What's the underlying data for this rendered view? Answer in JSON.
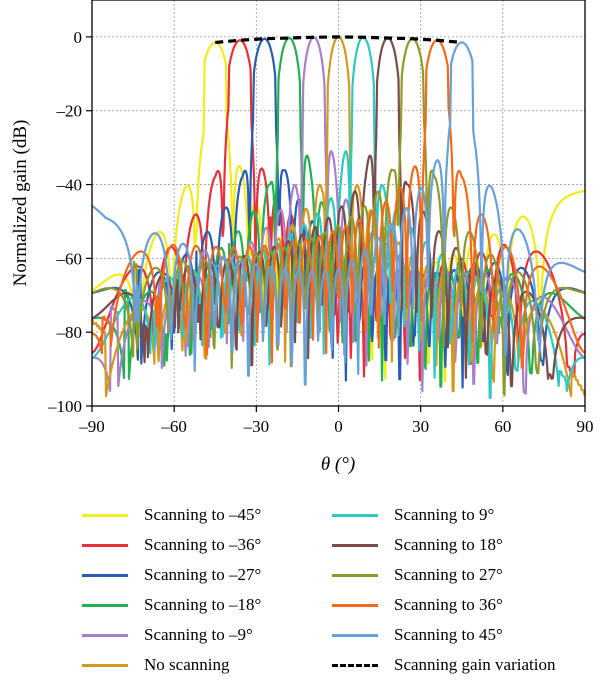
{
  "chart_data": {
    "type": "line",
    "xlabel": "θ (°)",
    "ylabel": "Normalized gain (dB)",
    "xlim": [
      -90,
      90
    ],
    "ylim": [
      -100,
      10
    ],
    "xticks": [
      -90,
      -60,
      -30,
      0,
      30,
      60,
      90
    ],
    "yticks": [
      0,
      -20,
      -40,
      -60,
      -80,
      -100
    ],
    "xtick_labels": [
      "–90",
      "–60",
      "–30",
      "0",
      "30",
      "60",
      "90"
    ],
    "ytick_labels": [
      "0",
      "–20",
      "–40",
      "–60",
      "–80",
      "–100"
    ],
    "grid": true,
    "legend_position": "bottom",
    "series": [
      {
        "name": "Scanning to –45°",
        "steer": -45,
        "peak": -1.5,
        "color": "#f2ec1a",
        "x": [
          -90,
          -75,
          -60,
          -50,
          -47,
          -45,
          -43,
          -40,
          -30,
          0,
          30,
          60,
          75,
          90
        ],
        "y": [
          -60,
          -52,
          -45,
          -35,
          -18,
          -1.5,
          -18,
          -32,
          -40,
          -45,
          -46,
          -40,
          -35,
          -33
        ]
      },
      {
        "name": "Scanning to –36°",
        "steer": -36,
        "peak": -0.9,
        "color": "#e8303a",
        "x": [
          -90,
          -60,
          -45,
          -38,
          -36,
          -34,
          -30,
          0,
          30,
          60,
          90
        ],
        "y": [
          -55,
          -48,
          -38,
          -18,
          -0.9,
          -18,
          -35,
          -46,
          -46,
          -42,
          -50
        ]
      },
      {
        "name": "Scanning to –27°",
        "steer": -27,
        "peak": -0.5,
        "color": "#2a5cb0",
        "x": [
          -90,
          -60,
          -35,
          -29,
          -27,
          -25,
          -20,
          0,
          30,
          60,
          90
        ],
        "y": [
          -55,
          -50,
          -38,
          -18,
          -0.5,
          -18,
          -36,
          -46,
          -47,
          -45,
          -55
        ]
      },
      {
        "name": "Scanning to –18°",
        "steer": -18,
        "peak": -0.3,
        "color": "#22b050",
        "x": [
          -90,
          -60,
          -25,
          -20,
          -18,
          -16,
          -10,
          0,
          30,
          60,
          90
        ],
        "y": [
          -58,
          -52,
          -40,
          -18,
          -0.3,
          -18,
          -36,
          -45,
          -47,
          -46,
          -58
        ]
      },
      {
        "name": "Scanning to –9°",
        "steer": -9,
        "peak": -0.1,
        "color": "#a97fca",
        "x": [
          -90,
          -60,
          -15,
          -11,
          -9,
          -7,
          0,
          30,
          60,
          90
        ],
        "y": [
          -60,
          -52,
          -40,
          -18,
          -0.1,
          -18,
          -38,
          -47,
          -47,
          -60
        ]
      },
      {
        "name": "No scanning",
        "steer": 0,
        "peak": 0,
        "color": "#d49a1e",
        "x": [
          -90,
          -60,
          -6,
          -2,
          0,
          2,
          6,
          30,
          60,
          90
        ],
        "y": [
          -62,
          -52,
          -40,
          -18,
          0,
          -18,
          -40,
          -47,
          -52,
          -62
        ]
      },
      {
        "name": "Scanning to 9°",
        "steer": 9,
        "peak": -0.1,
        "color": "#2ec9c4",
        "x": [
          -90,
          -60,
          0,
          7,
          9,
          11,
          15,
          60,
          90
        ],
        "y": [
          -60,
          -47,
          -38,
          -18,
          -0.1,
          -18,
          -40,
          -52,
          -60
        ]
      },
      {
        "name": "Scanning to 18°",
        "steer": 18,
        "peak": -0.3,
        "color": "#7b4a4a",
        "x": [
          -90,
          -60,
          10,
          16,
          18,
          20,
          25,
          60,
          90
        ],
        "y": [
          -58,
          -46,
          -36,
          -18,
          -0.3,
          -18,
          -40,
          -52,
          -58
        ]
      },
      {
        "name": "Scanning to 27°",
        "steer": 27,
        "peak": -0.5,
        "color": "#8f9a2a",
        "x": [
          -90,
          -60,
          20,
          25,
          27,
          29,
          35,
          60,
          90
        ],
        "y": [
          -55,
          -45,
          -36,
          -18,
          -0.5,
          -18,
          -38,
          -50,
          -55
        ]
      },
      {
        "name": "Scanning to 36°",
        "steer": 36,
        "peak": -0.9,
        "color": "#f26a1a",
        "x": [
          -90,
          -60,
          30,
          34,
          36,
          38,
          45,
          60,
          90
        ],
        "y": [
          -50,
          -42,
          -35,
          -18,
          -0.9,
          -18,
          -38,
          -48,
          -55
        ]
      },
      {
        "name": "Scanning to 45°",
        "steer": 45,
        "peak": -1.5,
        "color": "#6aa0d8",
        "x": [
          -90,
          -85,
          -60,
          0,
          40,
          43,
          45,
          47,
          50,
          60,
          75,
          90
        ],
        "y": [
          -37,
          -40,
          -43,
          -47,
          -32,
          -18,
          -1.5,
          -18,
          -35,
          -45,
          -50,
          -55
        ]
      },
      {
        "name": "Scanning gain variation",
        "color": "#000000",
        "dashed": true,
        "x": [
          -45,
          -36,
          -27,
          -18,
          -9,
          0,
          9,
          18,
          27,
          36,
          45
        ],
        "y": [
          -1.5,
          -0.9,
          -0.5,
          -0.3,
          -0.1,
          0,
          -0.1,
          -0.3,
          -0.5,
          -0.9,
          -1.5
        ]
      }
    ]
  }
}
